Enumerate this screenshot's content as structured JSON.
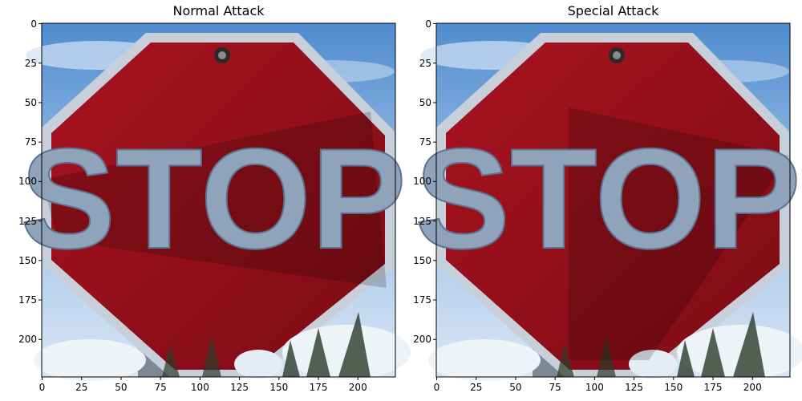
{
  "panels": [
    {
      "title": "Normal Attack",
      "x_ticks": [
        "0",
        "25",
        "50",
        "75",
        "100",
        "125",
        "150",
        "175",
        "200"
      ],
      "y_ticks": [
        "0",
        "25",
        "50",
        "75",
        "100",
        "125",
        "150",
        "175",
        "200"
      ]
    },
    {
      "title": "Special Attack",
      "x_ticks": [
        "0",
        "25",
        "50",
        "75",
        "100",
        "125",
        "150",
        "175",
        "200"
      ],
      "y_ticks": [
        "0",
        "25",
        "50",
        "75",
        "100",
        "125",
        "150",
        "175",
        "200"
      ]
    }
  ],
  "sign_text": "STOP",
  "colors": {
    "sky_top": "#5b8fd0",
    "sky_bottom": "#b9d3ee",
    "sign_red": "#9b0f1b",
    "sign_red_dark": "#6d0a13",
    "sign_border": "#c9d2dc",
    "letters": "#7f93ab",
    "snow": "#eef3f8"
  }
}
